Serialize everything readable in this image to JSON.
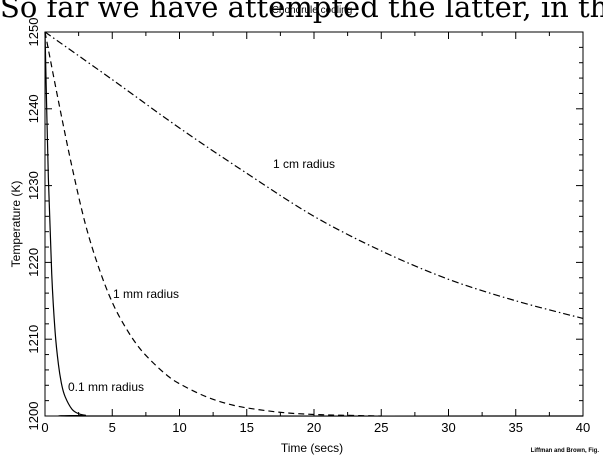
{
  "page_text": "So far we have attempted the latter, in the",
  "chart_data": {
    "type": "line",
    "title": "Chondrule cooling",
    "xlabel": "Time (secs)",
    "ylabel": "Temperature (K)",
    "xlim": [
      0,
      40
    ],
    "ylim": [
      1200,
      1250
    ],
    "xticks": [
      "0",
      "5",
      "10",
      "15",
      "20",
      "25",
      "30",
      "35",
      "40"
    ],
    "yticks": [
      "1200",
      "1210",
      "1220",
      "1230",
      "1240",
      "1250"
    ],
    "grid": false,
    "series": [
      {
        "name": "0.1 mm radius",
        "style": "solid",
        "x": [
          0,
          0.25,
          0.5,
          0.75,
          1,
          1.25,
          1.5,
          2,
          2.5,
          3,
          4,
          40
        ],
        "y": [
          1250,
          1231,
          1218.5,
          1211,
          1206.7,
          1204,
          1202.5,
          1200.9,
          1200.3,
          1200.1,
          1200,
          1200
        ]
      },
      {
        "name": "1 mm radius",
        "style": "dashed",
        "x": [
          0,
          1,
          2,
          3,
          4,
          5,
          6,
          7,
          8,
          9,
          10,
          12,
          14,
          16,
          18,
          20,
          22,
          25
        ],
        "y": [
          1250,
          1241,
          1232.5,
          1225,
          1219.3,
          1214.8,
          1211.5,
          1208.9,
          1207,
          1205.4,
          1204.2,
          1202.5,
          1201.4,
          1200.8,
          1200.4,
          1200.2,
          1200.1,
          1200
        ]
      },
      {
        "name": "1 cm radius",
        "style": "dash-dot",
        "x": [
          0,
          5,
          10,
          15,
          20,
          25,
          30,
          35,
          40
        ],
        "y": [
          1250,
          1243.8,
          1237.5,
          1231.6,
          1226,
          1221.5,
          1217.8,
          1215,
          1212.7
        ]
      }
    ],
    "annotations": [
      "1 cm radius",
      "1 mm radius",
      "0.1 mm radius"
    ],
    "credit": "Liffman and Brown, Fig."
  }
}
